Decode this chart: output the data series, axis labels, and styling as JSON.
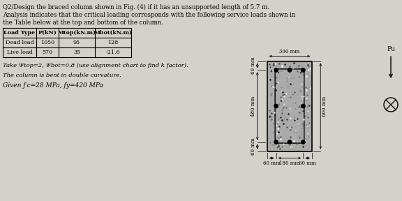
{
  "title_line1": "Q2/Design the braced column shown in Fig. (4) if it has an unsupported length of 5.7 m.",
  "title_line2": "Analysis indicates that the critical loading corresponds with the following service loads shown in",
  "title_line3": "the Table below at the top and bottom of the column.",
  "table_headers": [
    "Load Type",
    "P(kN)",
    "Mtop(kN.m)",
    "Mbot(kN.m)"
  ],
  "table_rows": [
    [
      "Dead load",
      "1050",
      "95",
      "128"
    ],
    [
      "Live load",
      "570",
      "35",
      "-21.6"
    ]
  ],
  "note1": "Take Ψtop=2, Ψbot=0.8 (use alignment chart to find k factor).",
  "note2": "The column is bent in double curvature.",
  "note3": "Given ƒ′c=28 MPa, fy=420 MPa",
  "dim_top": "300 mm",
  "dim_left_top": "60 mm",
  "dim_left_mid": "480 mm",
  "dim_left_bot": "60 mm",
  "dim_right": "600 mm",
  "dim_bot1": "60 mm",
  "dim_bot2": "180 mm",
  "dim_bot3": "60 mm",
  "label_Pu": "Pu",
  "bg_color": "#d4d0ca"
}
